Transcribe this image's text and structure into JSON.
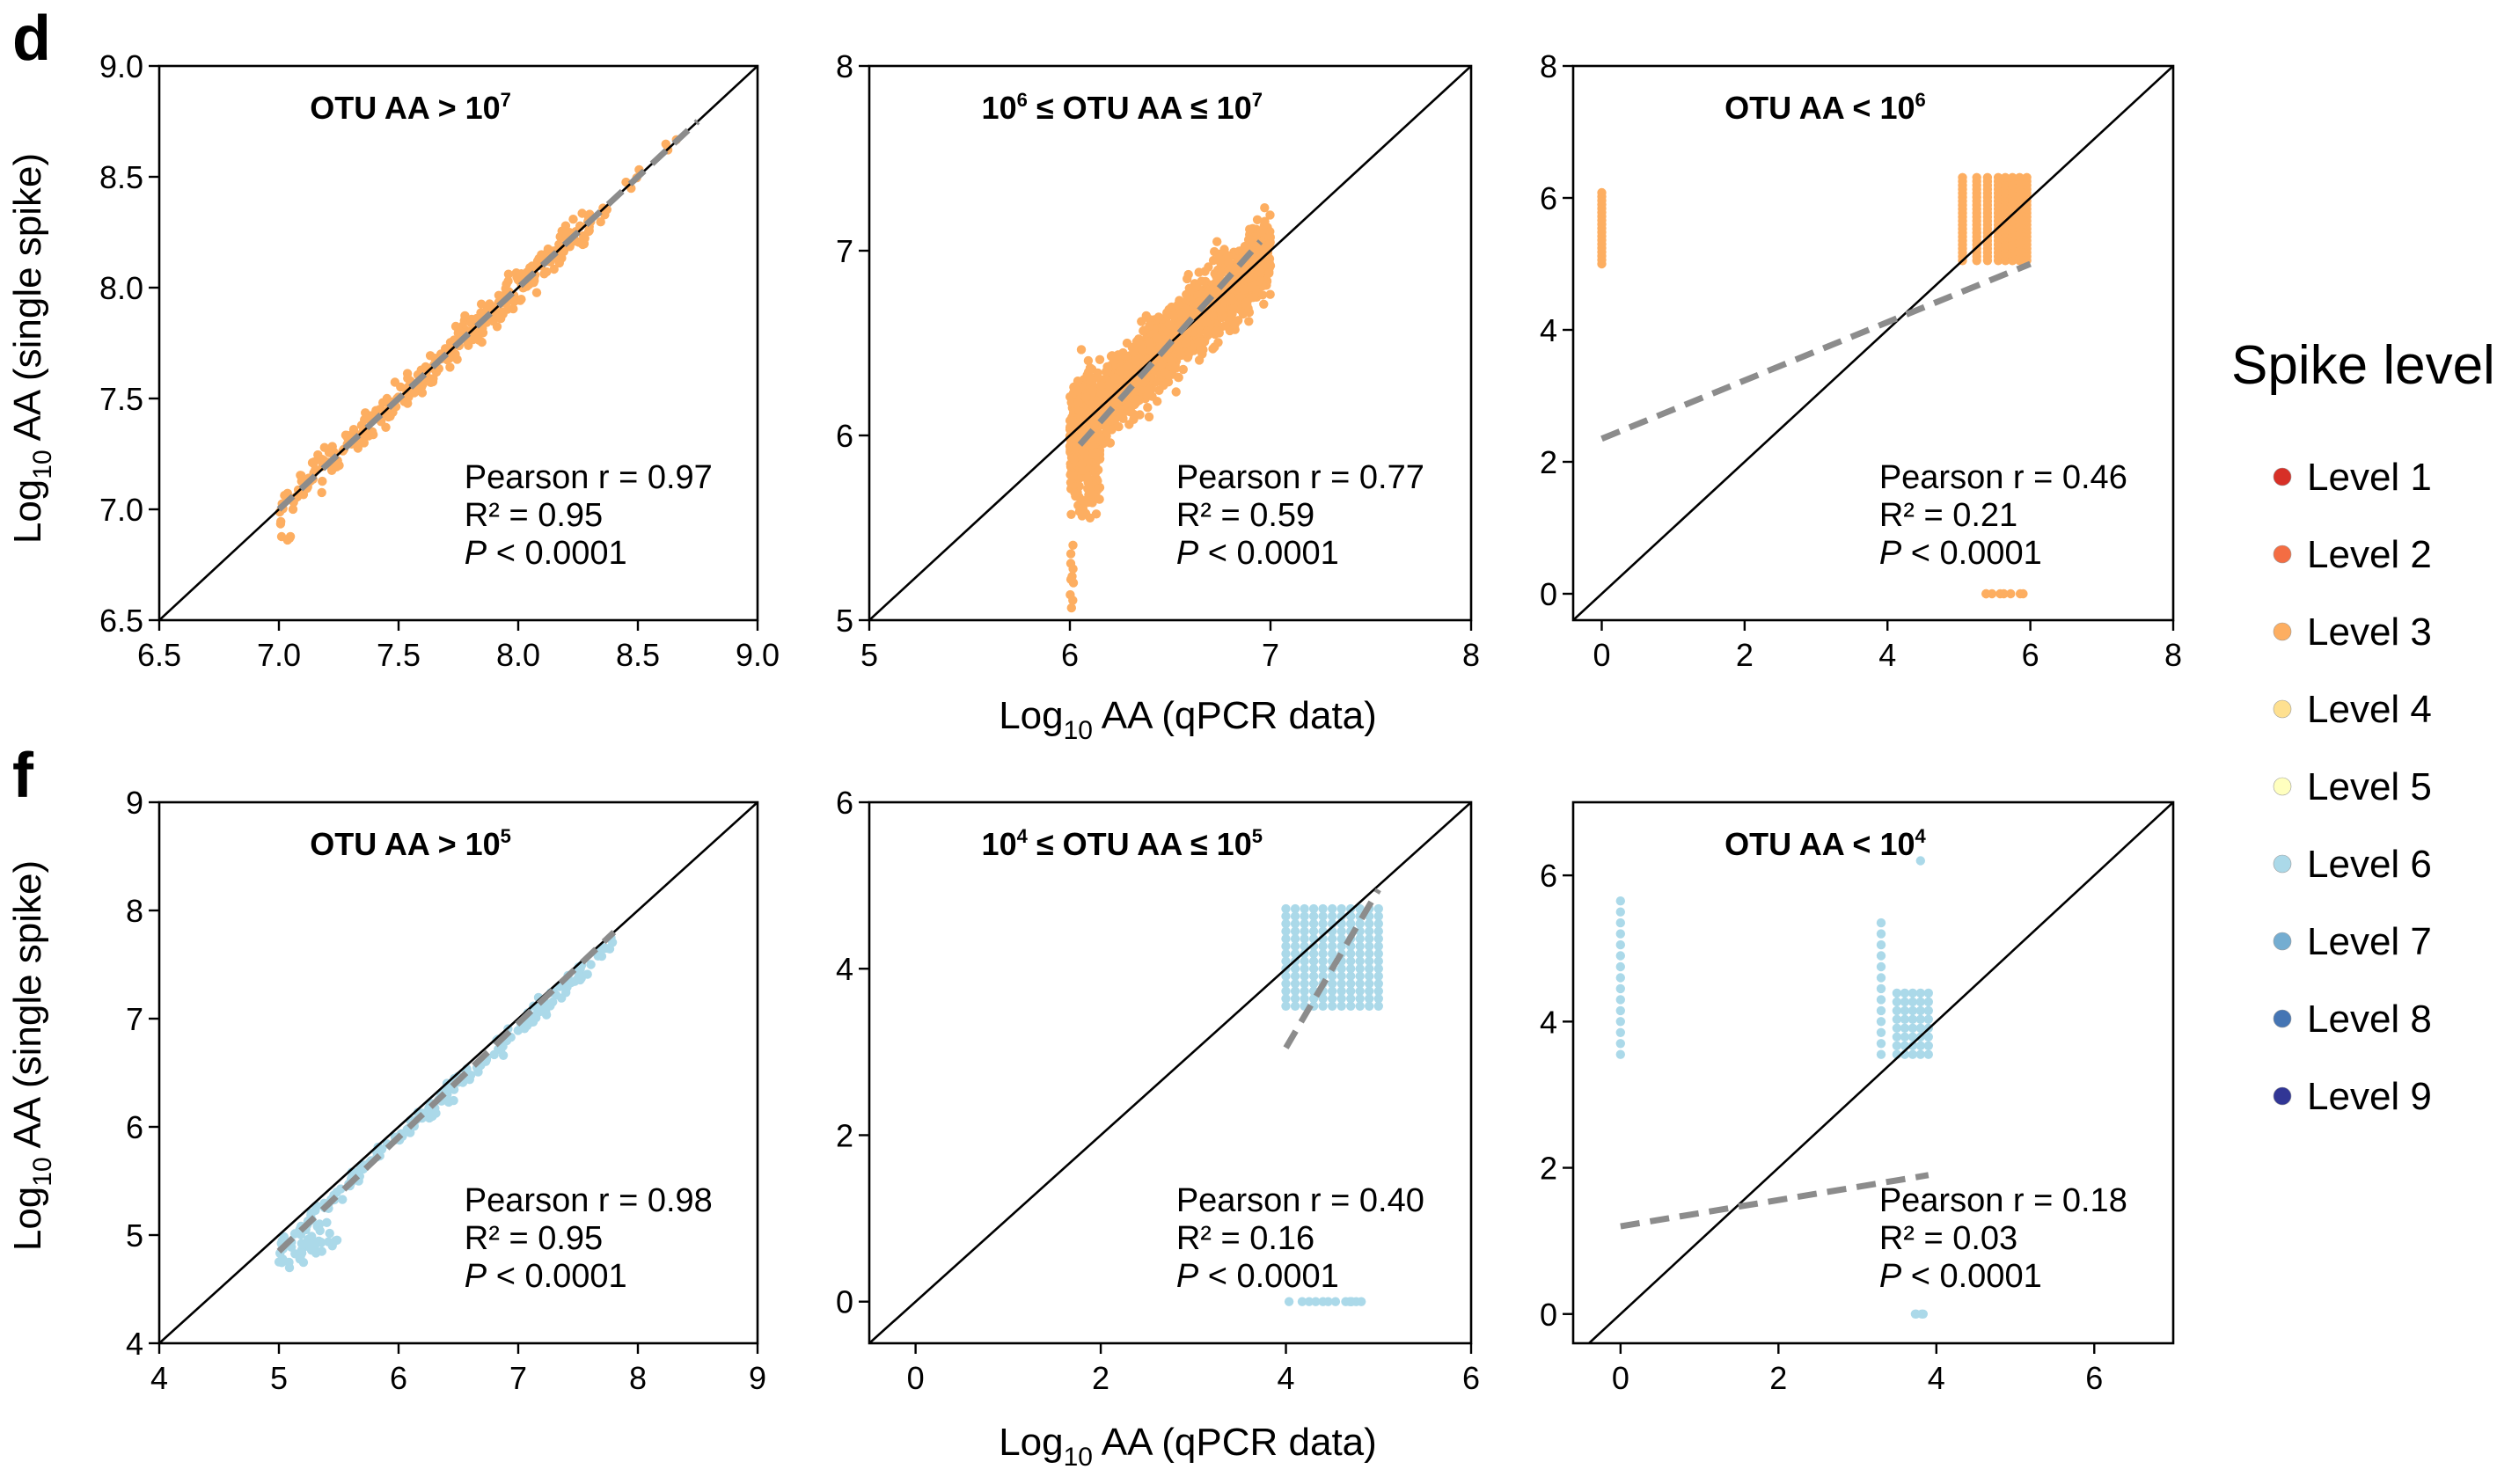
{
  "figure": {
    "panel_letters": [
      "d",
      "f"
    ],
    "ylabel_row1_base": "Log",
    "ylabel_row1_sub": "10",
    "ylabel_row1_rest": " AA (single spike)",
    "ylabel_row2_base": "Log",
    "ylabel_row2_sub": "10",
    "ylabel_row2_rest": " AA (single spike)",
    "xlabel_row1_base": "Log",
    "xlabel_row1_sub": "10",
    "xlabel_row1_rest": " AA (qPCR  data)",
    "xlabel_row2_base": "Log",
    "xlabel_row2_sub": "10",
    "xlabel_row2_rest": " AA (qPCR data)"
  },
  "legend": {
    "title": "Spike level",
    "items": [
      {
        "label": "Level 1",
        "color": "#d73027"
      },
      {
        "label": "Level 2",
        "color": "#f46d43"
      },
      {
        "label": "Level 3",
        "color": "#fdae61"
      },
      {
        "label": "Level 4",
        "color": "#fee090"
      },
      {
        "label": "Level 5",
        "color": "#ffffbf"
      },
      {
        "label": "Level 6",
        "color": "#abd9e9"
      },
      {
        "label": "Level 7",
        "color": "#74add1"
      },
      {
        "label": "Level 8",
        "color": "#4575b4"
      },
      {
        "label": "Level 9",
        "color": "#313695"
      }
    ]
  },
  "chart_data": [
    {
      "type": "scatter",
      "panel": "d",
      "row": 0,
      "col": 0,
      "title_parts": [
        {
          "t": "OTU AA > 10"
        },
        {
          "t": "7",
          "sup": true
        }
      ],
      "xlim": [
        6.5,
        9.0
      ],
      "ylim": [
        6.5,
        9.0
      ],
      "xticks": [
        "6.5",
        "7.0",
        "7.5",
        "8.0",
        "8.5",
        "9.0"
      ],
      "yticks": [
        "6.5",
        "7.0",
        "7.5",
        "8.0",
        "8.5",
        "9.0"
      ],
      "color": "#fdae61",
      "series_level": "Level 3",
      "stats": [
        "Pearson r = 0.97",
        "R² = 0.95",
        "P",
        " < 0.0001"
      ],
      "fit": [
        [
          7.0,
          7.0
        ],
        [
          8.75,
          8.75
        ]
      ],
      "clusters": [
        {
          "type": "band",
          "x": [
            7.0,
            8.3
          ],
          "slope": 1.0,
          "intercept": 0.0,
          "spread": 0.07,
          "n": 320,
          "seed": 1
        },
        {
          "type": "band",
          "x": [
            8.3,
            8.75
          ],
          "slope": 1.0,
          "intercept": 0.0,
          "spread": 0.03,
          "n": 12,
          "seed": 2
        },
        {
          "type": "band",
          "x": [
            7.0,
            7.05
          ],
          "slope": 0.0,
          "intercept": 6.87,
          "spread": 0.03,
          "n": 4,
          "seed": 3
        }
      ]
    },
    {
      "type": "scatter",
      "panel": "d",
      "row": 0,
      "col": 1,
      "title_parts": [
        {
          "t": "10"
        },
        {
          "t": "6",
          "sup": true
        },
        {
          "t": " ≤ OTU AA ≤ 10"
        },
        {
          "t": "7",
          "sup": true
        }
      ],
      "xlim": [
        5,
        8
      ],
      "ylim": [
        5,
        8
      ],
      "xticks": [
        "5",
        "6",
        "7",
        "8"
      ],
      "yticks": [
        "5",
        "6",
        "7",
        "8"
      ],
      "color": "#fdae61",
      "series_level": "Level 3",
      "stats": [
        "Pearson r = 0.77",
        "R² = 0.59",
        "P",
        " < 0.0001"
      ],
      "fit": [
        [
          6.05,
          5.95
        ],
        [
          6.95,
          7.05
        ]
      ],
      "clusters": [
        {
          "type": "band",
          "x": [
            6.0,
            7.0
          ],
          "slope": 1.0,
          "intercept": 0.0,
          "spread": 0.18,
          "n": 1400,
          "seed": 4
        },
        {
          "type": "band",
          "x": [
            6.0,
            6.15
          ],
          "slope": 0.0,
          "intercept": 5.95,
          "spread": 0.35,
          "n": 220,
          "seed": 5
        },
        {
          "type": "band",
          "x": [
            6.0,
            6.02
          ],
          "slope": 0.0,
          "intercept": 5.25,
          "spread": 0.2,
          "n": 10,
          "seed": 6
        },
        {
          "type": "band",
          "x": [
            6.8,
            7.0
          ],
          "slope": 0.6,
          "intercept": 2.7,
          "spread": 0.1,
          "n": 60,
          "seed": 7
        }
      ]
    },
    {
      "type": "scatter",
      "panel": "d",
      "row": 0,
      "col": 2,
      "title_parts": [
        {
          "t": "OTU AA < 10"
        },
        {
          "t": "6",
          "sup": true
        }
      ],
      "xlim": [
        -0.4,
        8
      ],
      "ylim": [
        -0.4,
        8
      ],
      "xticks": [
        "0",
        "2",
        "4",
        "6",
        "8"
      ],
      "yticks": [
        "0",
        "2",
        "4",
        "6",
        "8"
      ],
      "color": "#fdae61",
      "series_level": "Level 3",
      "stats": [
        "Pearson r = 0.46",
        "R² = 0.21",
        "P",
        " < 0.0001"
      ],
      "fit": [
        [
          0.0,
          2.35
        ],
        [
          6.0,
          5.0
        ]
      ],
      "clusters": [
        {
          "type": "columns",
          "xs": [
            0.0
          ],
          "y": [
            5.0,
            6.1
          ],
          "step": 0.06
        },
        {
          "type": "columns",
          "xs": [
            5.05,
            5.25,
            5.4,
            5.55,
            5.65,
            5.75,
            5.85,
            5.95
          ],
          "y": [
            5.05,
            6.35
          ],
          "step": 0.06
        },
        {
          "type": "band",
          "x": [
            5.3,
            6.0
          ],
          "slope": 0.0,
          "intercept": 0.0,
          "spread": 0.0,
          "n": 8,
          "seed": 8
        }
      ]
    },
    {
      "type": "scatter",
      "panel": "f",
      "row": 1,
      "col": 0,
      "title_parts": [
        {
          "t": "OTU AA > 10"
        },
        {
          "t": "5",
          "sup": true
        }
      ],
      "xlim": [
        4,
        9
      ],
      "ylim": [
        4,
        9
      ],
      "xticks": [
        "4",
        "5",
        "6",
        "7",
        "8",
        "9"
      ],
      "yticks": [
        "4",
        "5",
        "6",
        "7",
        "8",
        "9"
      ],
      "color": "#abd9e9",
      "series_level": "Level 6",
      "stats": [
        "Pearson r = 0.98",
        "R² = 0.95",
        "P",
        " < 0.0001"
      ],
      "fit": [
        [
          5.0,
          4.85
        ],
        [
          7.8,
          7.8
        ]
      ],
      "clusters": [
        {
          "type": "band",
          "x": [
            5.0,
            7.8
          ],
          "slope": 1.0,
          "intercept": -0.1,
          "spread": 0.08,
          "n": 200,
          "seed": 9
        },
        {
          "type": "band",
          "x": [
            5.0,
            5.5
          ],
          "slope": 0.5,
          "intercept": 2.3,
          "spread": 0.15,
          "n": 40,
          "seed": 10
        }
      ]
    },
    {
      "type": "scatter",
      "panel": "f",
      "row": 1,
      "col": 1,
      "title_parts": [
        {
          "t": "10"
        },
        {
          "t": "4",
          "sup": true
        },
        {
          "t": " ≤ OTU AA ≤ 10"
        },
        {
          "t": "5",
          "sup": true
        }
      ],
      "xlim": [
        -0.5,
        6
      ],
      "ylim": [
        -0.5,
        6
      ],
      "xticks": [
        "0",
        "2",
        "4",
        "6"
      ],
      "yticks": [
        "0",
        "2",
        "4",
        "6"
      ],
      "color": "#abd9e9",
      "series_level": "Level 6",
      "stats": [
        "Pearson r = 0.40",
        "R² = 0.16",
        "P",
        " < 0.0001"
      ],
      "fit": [
        [
          4.0,
          3.05
        ],
        [
          5.0,
          4.95
        ]
      ],
      "clusters": [
        {
          "type": "columns",
          "xs": [
            4.0,
            4.1,
            4.2,
            4.3,
            4.4,
            4.5,
            4.6,
            4.7,
            4.8,
            4.9,
            5.0
          ],
          "y": [
            3.55,
            4.8
          ],
          "step": 0.09
        },
        {
          "type": "band",
          "x": [
            4.0,
            4.9
          ],
          "slope": 0.0,
          "intercept": 0.0,
          "spread": 0.0,
          "n": 14,
          "seed": 11
        }
      ]
    },
    {
      "type": "scatter",
      "panel": "f",
      "row": 1,
      "col": 2,
      "title_parts": [
        {
          "t": "OTU AA < 10"
        },
        {
          "t": "4",
          "sup": true
        }
      ],
      "xlim": [
        -0.6,
        7
      ],
      "ylim": [
        -0.4,
        7
      ],
      "xticks": [
        "0",
        "2",
        "4",
        "6"
      ],
      "yticks": [
        "0",
        "2",
        "4",
        "6"
      ],
      "color": "#abd9e9",
      "series_level": "Level 6",
      "stats": [
        "Pearson r = 0.18",
        "R² = 0.03",
        "P",
        " < 0.0001"
      ],
      "fit": [
        [
          0.0,
          1.2
        ],
        [
          3.9,
          1.9
        ]
      ],
      "clusters": [
        {
          "type": "columns",
          "xs": [
            0.0
          ],
          "y": [
            3.55,
            5.65
          ],
          "step": 0.15
        },
        {
          "type": "columns",
          "xs": [
            3.3
          ],
          "y": [
            3.55,
            5.45
          ],
          "step": 0.15
        },
        {
          "type": "columns",
          "xs": [
            3.5,
            3.6,
            3.7,
            3.8,
            3.9
          ],
          "y": [
            3.55,
            4.5
          ],
          "step": 0.12
        },
        {
          "type": "columns",
          "xs": [
            3.8
          ],
          "y": [
            6.2,
            6.2
          ],
          "step": 0.1
        },
        {
          "type": "band",
          "x": [
            3.3,
            3.9
          ],
          "slope": 0.0,
          "intercept": 0.0,
          "spread": 0.0,
          "n": 4,
          "seed": 12
        }
      ]
    }
  ]
}
